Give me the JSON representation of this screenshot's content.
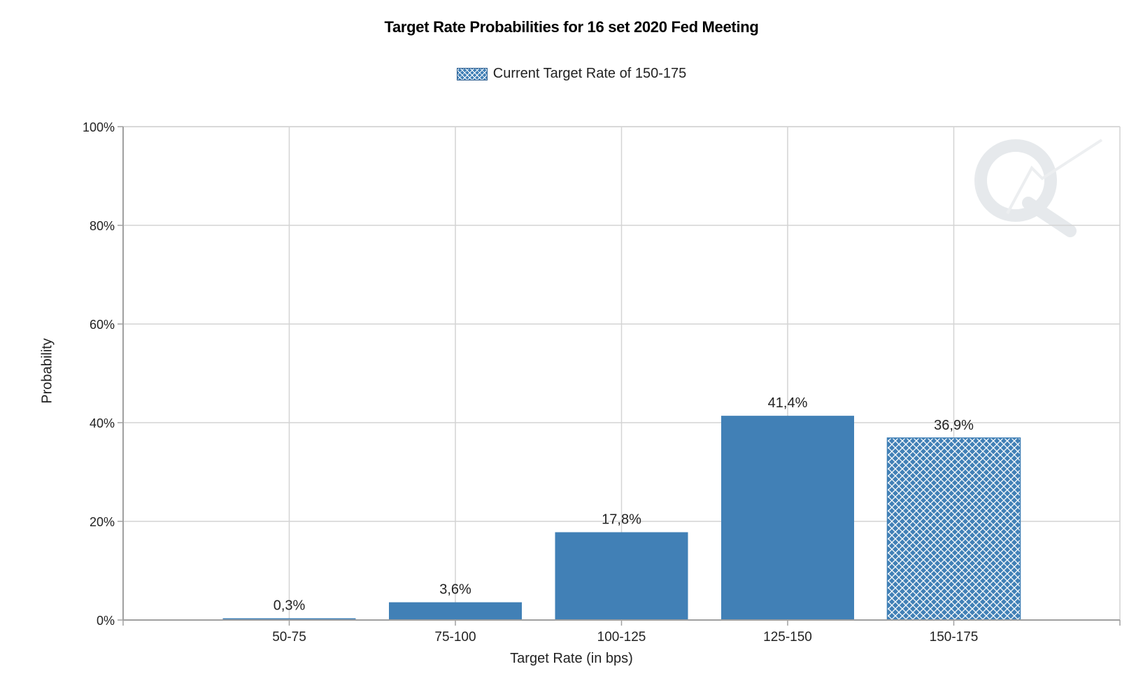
{
  "chart_data": {
    "type": "bar",
    "title": "Target Rate Probabilities for 16 set 2020 Fed Meeting",
    "xlabel": "Target Rate (in bps)",
    "ylabel": "Probability",
    "categories": [
      "50-75",
      "75-100",
      "100-125",
      "125-150",
      "150-175"
    ],
    "values": [
      0.3,
      3.6,
      17.8,
      41.4,
      36.9
    ],
    "value_labels": [
      "0,3%",
      "3,6%",
      "17,8%",
      "41,4%",
      "36,9%"
    ],
    "highlighted_category": "150-175",
    "ylim": [
      0,
      100
    ],
    "yticks": [
      0,
      20,
      40,
      60,
      80,
      100
    ],
    "ytick_labels": [
      "0%",
      "20%",
      "40%",
      "60%",
      "80%",
      "100%"
    ],
    "grid": true,
    "legend": {
      "position": "top-center",
      "entries": [
        "Current Target Rate of 150-175"
      ]
    },
    "colors": {
      "bar": "#4180b6",
      "hatch_line": "#ffffff",
      "grid": "#d4d4d4",
      "axis": "#a0a0a0"
    }
  }
}
